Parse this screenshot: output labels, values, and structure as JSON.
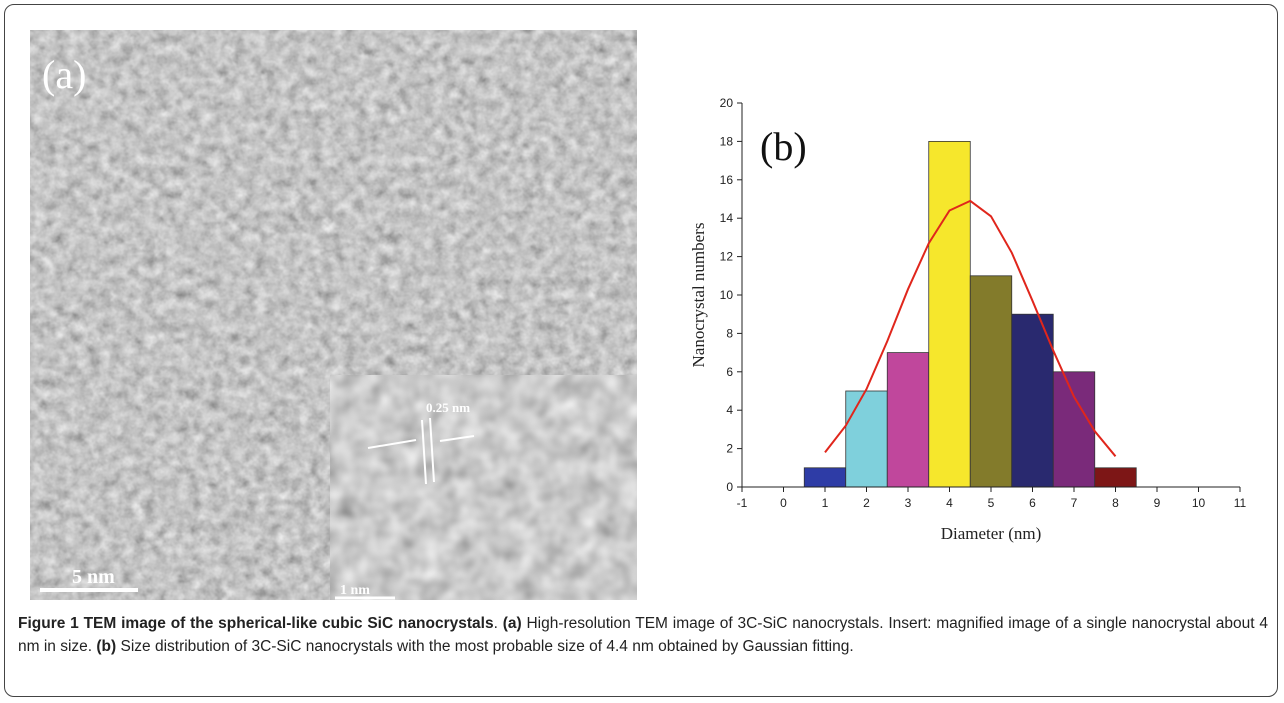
{
  "panel_a": {
    "label": "(a)",
    "lattice_spacing": "0.25 nm",
    "scale_bar": "5 nm",
    "inset_scale_bar": "1 nm"
  },
  "chart_data": {
    "type": "histogram",
    "panel_label": "(b)",
    "x_label": "Diameter (nm)",
    "y_label": "Nanocrystal numbers",
    "bins": [
      0.5,
      1.5,
      2.5,
      3.5,
      4.5,
      5.5,
      6.5,
      7.5,
      8.5
    ],
    "values": [
      1,
      5,
      7,
      18,
      11,
      9,
      6,
      1
    ],
    "colors": [
      "#2e3ca6",
      "#7fd0dc",
      "#c0479c",
      "#f6e72c",
      "#837b2b",
      "#29296f",
      "#7a2a7a",
      "#7d1616"
    ],
    "fit": {
      "x": [
        1,
        1.5,
        2,
        2.5,
        3,
        3.5,
        4,
        4.5,
        5,
        5.5,
        6,
        6.5,
        7,
        7.5,
        8
      ],
      "values": [
        1.8,
        3.2,
        5.1,
        7.6,
        10.3,
        12.7,
        14.4,
        14.9,
        14.1,
        12.2,
        9.7,
        7.1,
        4.7,
        2.9,
        1.6
      ],
      "color": "#e0261c"
    },
    "xlim": [
      -1,
      11
    ],
    "xticks": [
      -1,
      0,
      1,
      2,
      3,
      4,
      5,
      6,
      7,
      8,
      9,
      10,
      11
    ],
    "ylim": [
      0,
      20
    ],
    "yticks": [
      0,
      2,
      4,
      6,
      8,
      10,
      12,
      14,
      16,
      18,
      20
    ]
  },
  "caption": {
    "parts": [
      {
        "text": "Figure 1 TEM image of the spherical-like cubic SiC nanocrystals",
        "bold": true
      },
      {
        "text": ". ",
        "bold": false
      },
      {
        "text": "(a)",
        "bold": true
      },
      {
        "text": " High-resolution TEM image of 3C-SiC nanocrystals. Insert: magnified image of a single nanocrystal about 4 nm in size. ",
        "bold": false
      },
      {
        "text": "(b)",
        "bold": true
      },
      {
        "text": " Size distribution of 3C-SiC nanocrystals with the most probable size of 4.4 nm obtained by Gaussian fitting.",
        "bold": false
      }
    ]
  }
}
